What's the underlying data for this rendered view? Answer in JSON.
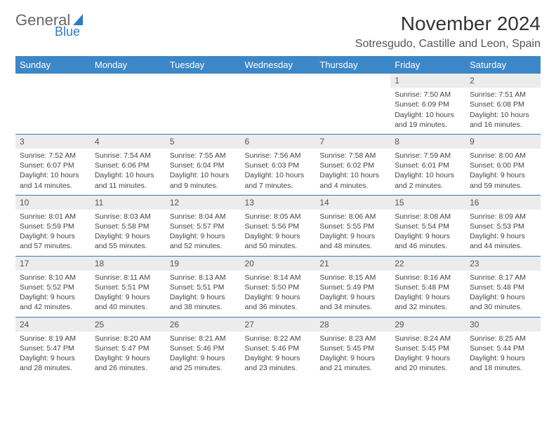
{
  "brand": {
    "line1": "General",
    "line2": "Blue"
  },
  "title": "November 2024",
  "location": "Sotresgudo, Castille and Leon, Spain",
  "colors": {
    "accent": "#3b87c8",
    "daynum_bg": "#ececec",
    "rule": "#2f7cc0"
  },
  "weekdays": [
    "Sunday",
    "Monday",
    "Tuesday",
    "Wednesday",
    "Thursday",
    "Friday",
    "Saturday"
  ],
  "weeks": [
    [
      {
        "n": "",
        "lines": [
          "",
          "",
          ""
        ]
      },
      {
        "n": "",
        "lines": [
          "",
          "",
          ""
        ]
      },
      {
        "n": "",
        "lines": [
          "",
          "",
          ""
        ]
      },
      {
        "n": "",
        "lines": [
          "",
          "",
          ""
        ]
      },
      {
        "n": "",
        "lines": [
          "",
          "",
          ""
        ]
      },
      {
        "n": "1",
        "lines": [
          "Sunrise: 7:50 AM",
          "Sunset: 6:09 PM",
          "Daylight: 10 hours and 19 minutes."
        ]
      },
      {
        "n": "2",
        "lines": [
          "Sunrise: 7:51 AM",
          "Sunset: 6:08 PM",
          "Daylight: 10 hours and 16 minutes."
        ]
      }
    ],
    [
      {
        "n": "3",
        "lines": [
          "Sunrise: 7:52 AM",
          "Sunset: 6:07 PM",
          "Daylight: 10 hours and 14 minutes."
        ]
      },
      {
        "n": "4",
        "lines": [
          "Sunrise: 7:54 AM",
          "Sunset: 6:06 PM",
          "Daylight: 10 hours and 11 minutes."
        ]
      },
      {
        "n": "5",
        "lines": [
          "Sunrise: 7:55 AM",
          "Sunset: 6:04 PM",
          "Daylight: 10 hours and 9 minutes."
        ]
      },
      {
        "n": "6",
        "lines": [
          "Sunrise: 7:56 AM",
          "Sunset: 6:03 PM",
          "Daylight: 10 hours and 7 minutes."
        ]
      },
      {
        "n": "7",
        "lines": [
          "Sunrise: 7:58 AM",
          "Sunset: 6:02 PM",
          "Daylight: 10 hours and 4 minutes."
        ]
      },
      {
        "n": "8",
        "lines": [
          "Sunrise: 7:59 AM",
          "Sunset: 6:01 PM",
          "Daylight: 10 hours and 2 minutes."
        ]
      },
      {
        "n": "9",
        "lines": [
          "Sunrise: 8:00 AM",
          "Sunset: 6:00 PM",
          "Daylight: 9 hours and 59 minutes."
        ]
      }
    ],
    [
      {
        "n": "10",
        "lines": [
          "Sunrise: 8:01 AM",
          "Sunset: 5:59 PM",
          "Daylight: 9 hours and 57 minutes."
        ]
      },
      {
        "n": "11",
        "lines": [
          "Sunrise: 8:03 AM",
          "Sunset: 5:58 PM",
          "Daylight: 9 hours and 55 minutes."
        ]
      },
      {
        "n": "12",
        "lines": [
          "Sunrise: 8:04 AM",
          "Sunset: 5:57 PM",
          "Daylight: 9 hours and 52 minutes."
        ]
      },
      {
        "n": "13",
        "lines": [
          "Sunrise: 8:05 AM",
          "Sunset: 5:56 PM",
          "Daylight: 9 hours and 50 minutes."
        ]
      },
      {
        "n": "14",
        "lines": [
          "Sunrise: 8:06 AM",
          "Sunset: 5:55 PM",
          "Daylight: 9 hours and 48 minutes."
        ]
      },
      {
        "n": "15",
        "lines": [
          "Sunrise: 8:08 AM",
          "Sunset: 5:54 PM",
          "Daylight: 9 hours and 46 minutes."
        ]
      },
      {
        "n": "16",
        "lines": [
          "Sunrise: 8:09 AM",
          "Sunset: 5:53 PM",
          "Daylight: 9 hours and 44 minutes."
        ]
      }
    ],
    [
      {
        "n": "17",
        "lines": [
          "Sunrise: 8:10 AM",
          "Sunset: 5:52 PM",
          "Daylight: 9 hours and 42 minutes."
        ]
      },
      {
        "n": "18",
        "lines": [
          "Sunrise: 8:11 AM",
          "Sunset: 5:51 PM",
          "Daylight: 9 hours and 40 minutes."
        ]
      },
      {
        "n": "19",
        "lines": [
          "Sunrise: 8:13 AM",
          "Sunset: 5:51 PM",
          "Daylight: 9 hours and 38 minutes."
        ]
      },
      {
        "n": "20",
        "lines": [
          "Sunrise: 8:14 AM",
          "Sunset: 5:50 PM",
          "Daylight: 9 hours and 36 minutes."
        ]
      },
      {
        "n": "21",
        "lines": [
          "Sunrise: 8:15 AM",
          "Sunset: 5:49 PM",
          "Daylight: 9 hours and 34 minutes."
        ]
      },
      {
        "n": "22",
        "lines": [
          "Sunrise: 8:16 AM",
          "Sunset: 5:48 PM",
          "Daylight: 9 hours and 32 minutes."
        ]
      },
      {
        "n": "23",
        "lines": [
          "Sunrise: 8:17 AM",
          "Sunset: 5:48 PM",
          "Daylight: 9 hours and 30 minutes."
        ]
      }
    ],
    [
      {
        "n": "24",
        "lines": [
          "Sunrise: 8:19 AM",
          "Sunset: 5:47 PM",
          "Daylight: 9 hours and 28 minutes."
        ]
      },
      {
        "n": "25",
        "lines": [
          "Sunrise: 8:20 AM",
          "Sunset: 5:47 PM",
          "Daylight: 9 hours and 26 minutes."
        ]
      },
      {
        "n": "26",
        "lines": [
          "Sunrise: 8:21 AM",
          "Sunset: 5:46 PM",
          "Daylight: 9 hours and 25 minutes."
        ]
      },
      {
        "n": "27",
        "lines": [
          "Sunrise: 8:22 AM",
          "Sunset: 5:46 PM",
          "Daylight: 9 hours and 23 minutes."
        ]
      },
      {
        "n": "28",
        "lines": [
          "Sunrise: 8:23 AM",
          "Sunset: 5:45 PM",
          "Daylight: 9 hours and 21 minutes."
        ]
      },
      {
        "n": "29",
        "lines": [
          "Sunrise: 8:24 AM",
          "Sunset: 5:45 PM",
          "Daylight: 9 hours and 20 minutes."
        ]
      },
      {
        "n": "30",
        "lines": [
          "Sunrise: 8:25 AM",
          "Sunset: 5:44 PM",
          "Daylight: 9 hours and 18 minutes."
        ]
      }
    ]
  ]
}
